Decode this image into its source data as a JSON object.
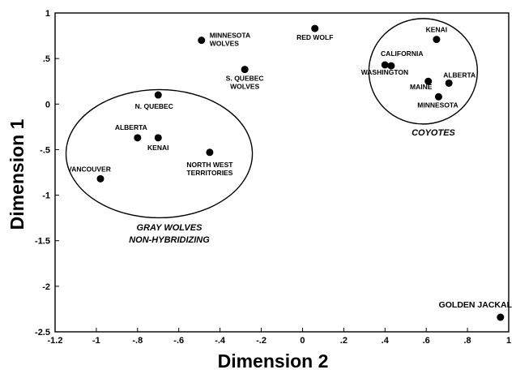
{
  "chart_data": {
    "type": "scatter",
    "xlabel": "Dimension 2",
    "ylabel": "Dimension 1",
    "xlim": [
      -1.2,
      1.0
    ],
    "ylim": [
      -2.5,
      1.0
    ],
    "xticks": [
      {
        "v": -1.2,
        "t": "-1.2"
      },
      {
        "v": -1.0,
        "t": "-1"
      },
      {
        "v": -0.8,
        "t": "-.8"
      },
      {
        "v": -0.6,
        "t": "-.6"
      },
      {
        "v": -0.4,
        "t": "-.4"
      },
      {
        "v": -0.2,
        "t": "-.2"
      },
      {
        "v": 0.0,
        "t": "0"
      },
      {
        "v": 0.2,
        "t": ".2"
      },
      {
        "v": 0.4,
        "t": ".4"
      },
      {
        "v": 0.6,
        "t": ".6"
      },
      {
        "v": 0.8,
        "t": ".8"
      },
      {
        "v": 1.0,
        "t": "1"
      }
    ],
    "yticks": [
      {
        "v": 1.0,
        "t": "1"
      },
      {
        "v": 0.5,
        "t": ".5"
      },
      {
        "v": 0.0,
        "t": "0"
      },
      {
        "v": -0.5,
        "t": "-.5"
      },
      {
        "v": -1.0,
        "t": "-1"
      },
      {
        "v": -1.5,
        "t": "-1.5"
      },
      {
        "v": -2.0,
        "t": "-2"
      },
      {
        "v": -2.5,
        "t": "-2.5"
      }
    ],
    "grid": false,
    "points": [
      {
        "label": [
          "MINNESOTA",
          "WOLVES"
        ],
        "x": -0.49,
        "y": 0.7
      },
      {
        "label": [
          "RED WOLF"
        ],
        "x": 0.06,
        "y": 0.83
      },
      {
        "label": [
          "S. QUEBEC",
          "WOLVES"
        ],
        "x": -0.28,
        "y": 0.38
      },
      {
        "label": [
          "N. QUEBEC"
        ],
        "x": -0.7,
        "y": 0.1
      },
      {
        "label": [
          "ALBERTA"
        ],
        "x": -0.8,
        "y": -0.37
      },
      {
        "label": [
          "KENAI"
        ],
        "x": -0.7,
        "y": -0.37
      },
      {
        "label": [
          "NORTH WEST",
          "TERRITORIES"
        ],
        "x": -0.45,
        "y": -0.53
      },
      {
        "label": [
          "VANCOUVER"
        ],
        "x": -0.98,
        "y": -0.82
      },
      {
        "label": [
          "KENAI"
        ],
        "x": 0.65,
        "y": 0.71
      },
      {
        "label": [
          "CALIFORNIA"
        ],
        "x": 0.4,
        "y": 0.43
      },
      {
        "label": [
          "WASHINGTON"
        ],
        "x": 0.43,
        "y": 0.42
      },
      {
        "label": [
          "MAINE"
        ],
        "x": 0.61,
        "y": 0.25
      },
      {
        "label": [
          "ALBERTA"
        ],
        "x": 0.71,
        "y": 0.23
      },
      {
        "label": [
          "MINNESOTA"
        ],
        "x": 0.66,
        "y": 0.08
      },
      {
        "label": [
          "GOLDEN JACKAL"
        ],
        "x": 0.96,
        "y": -2.34
      }
    ],
    "groups": [
      {
        "label": [
          "GRAY WOLVES",
          "NON-HYBRIDIZING"
        ]
      },
      {
        "label": [
          "COYOTES"
        ]
      }
    ]
  }
}
